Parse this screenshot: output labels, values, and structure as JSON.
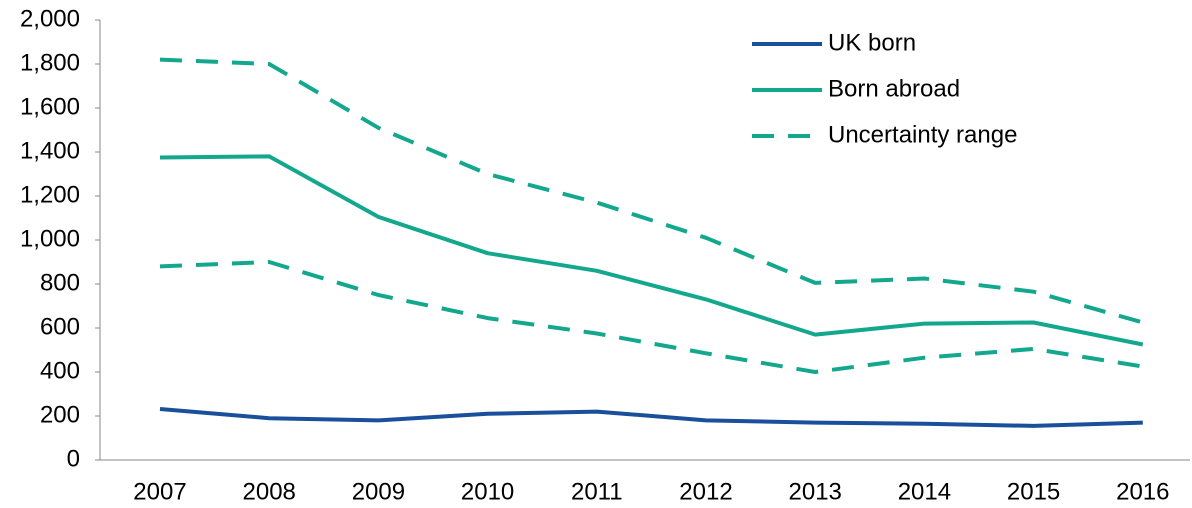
{
  "chart_data": {
    "type": "line",
    "categories": [
      "2007",
      "2008",
      "2009",
      "2010",
      "2011",
      "2012",
      "2013",
      "2014",
      "2015",
      "2016"
    ],
    "series": [
      {
        "name": "UK born",
        "color": "#1a4f9c",
        "values": [
          232,
          190,
          180,
          210,
          220,
          180,
          170,
          165,
          155,
          170
        ]
      },
      {
        "name": "Born abroad",
        "color": "#13a88e",
        "values": [
          1375,
          1380,
          1105,
          940,
          860,
          730,
          570,
          620,
          625,
          525
        ]
      },
      {
        "name": "Uncertainty range",
        "color": "#13a88e",
        "dashed": true,
        "upper": [
          1820,
          1800,
          1510,
          1300,
          1170,
          1010,
          805,
          825,
          765,
          625
        ],
        "lower": [
          880,
          900,
          750,
          645,
          575,
          485,
          400,
          465,
          505,
          425
        ]
      }
    ],
    "ylim": [
      0,
      2000
    ],
    "yticks": [
      0,
      200,
      400,
      600,
      800,
      {
        "value": 1000,
        "label": "1,000"
      },
      {
        "value": 1200,
        "label": "1,200"
      },
      {
        "value": 1400,
        "label": "1,400"
      },
      {
        "value": 1600,
        "label": "1,600"
      },
      {
        "value": 1800,
        "label": "1,800"
      },
      {
        "value": 2000,
        "label": "2,000"
      }
    ],
    "legend": "top-right"
  }
}
